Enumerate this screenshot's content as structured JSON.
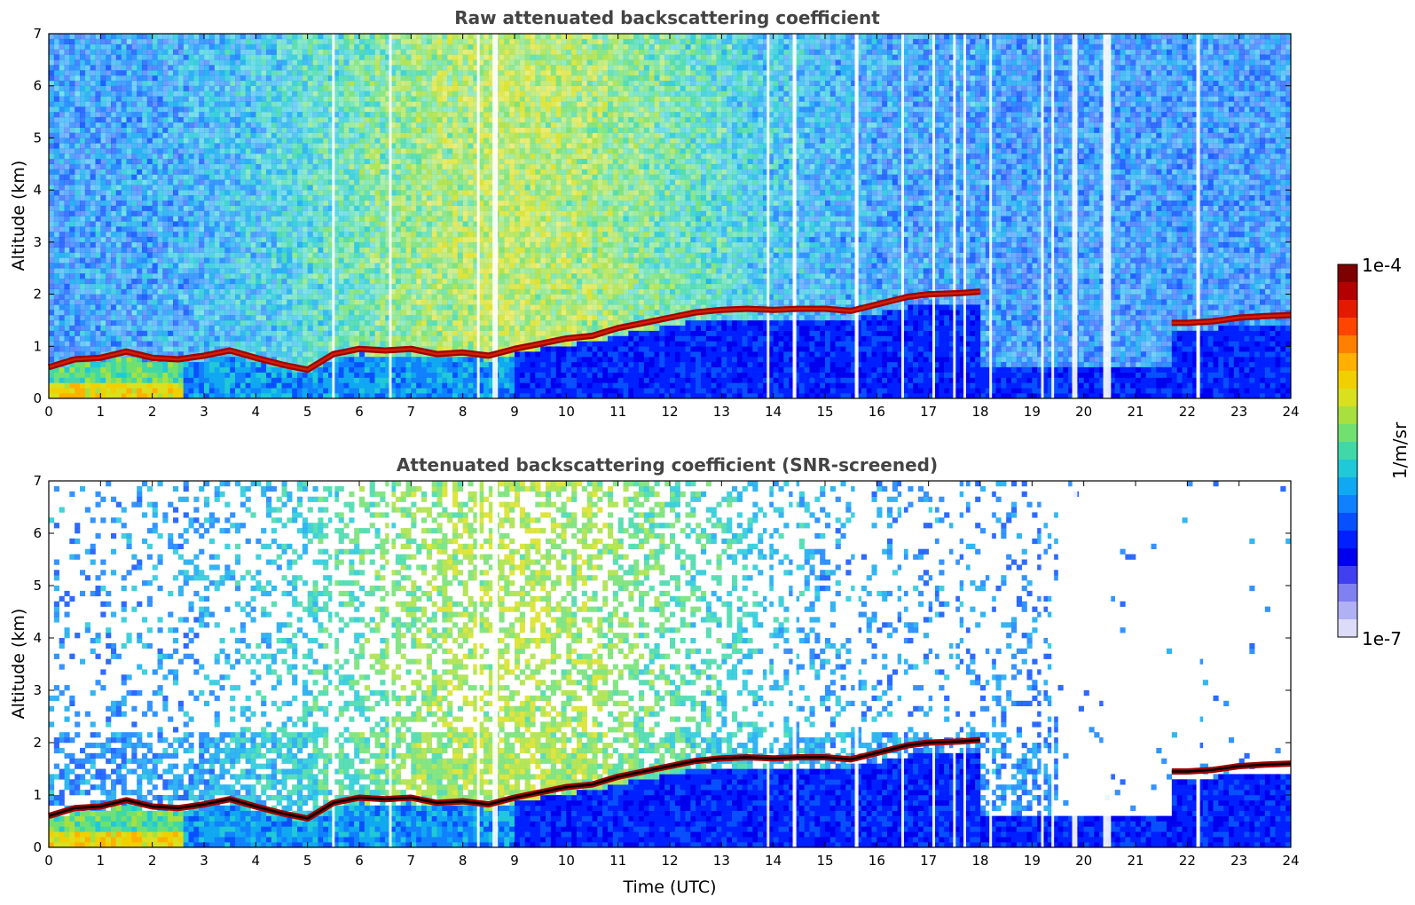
{
  "chart_data": [
    {
      "type": "heatmap",
      "title": "Raw attenuated backscattering coefficient",
      "xlabel": "",
      "ylabel": "Altitude (km)",
      "xlim": [
        0,
        24
      ],
      "ylim": [
        0,
        7
      ],
      "x_ticks": [
        0,
        1,
        2,
        3,
        4,
        5,
        6,
        7,
        8,
        9,
        10,
        11,
        12,
        13,
        14,
        15,
        16,
        17,
        18,
        19,
        20,
        21,
        22,
        23,
        24
      ],
      "y_ticks": [
        0,
        1,
        2,
        3,
        4,
        5,
        6,
        7
      ],
      "layer_height_km": [
        [
          0,
          0.6
        ],
        [
          0.5,
          0.75
        ],
        [
          1,
          0.78
        ],
        [
          1.5,
          0.9
        ],
        [
          2,
          0.78
        ],
        [
          2.5,
          0.75
        ],
        [
          3,
          0.82
        ],
        [
          3.5,
          0.92
        ],
        [
          4,
          0.78
        ],
        [
          4.5,
          0.65
        ],
        [
          5,
          0.55
        ],
        [
          5.5,
          0.85
        ],
        [
          6,
          0.95
        ],
        [
          6.5,
          0.92
        ],
        [
          7,
          0.95
        ],
        [
          7.5,
          0.85
        ],
        [
          8,
          0.88
        ],
        [
          8.5,
          0.82
        ],
        [
          9,
          0.95
        ],
        [
          9.5,
          1.05
        ],
        [
          10,
          1.15
        ],
        [
          10.5,
          1.2
        ],
        [
          11,
          1.35
        ],
        [
          11.5,
          1.45
        ],
        [
          12,
          1.55
        ],
        [
          12.5,
          1.65
        ],
        [
          13,
          1.7
        ],
        [
          13.5,
          1.72
        ],
        [
          14,
          1.7
        ],
        [
          14.5,
          1.72
        ],
        [
          15,
          1.72
        ],
        [
          15.5,
          1.68
        ],
        [
          16.6,
          1.95
        ],
        [
          17,
          2.0
        ],
        [
          17.6,
          2.02
        ],
        [
          18,
          2.05
        ],
        [
          21.7,
          1.45
        ],
        [
          22,
          1.45
        ],
        [
          22.5,
          1.48
        ],
        [
          23,
          1.55
        ],
        [
          23.5,
          1.58
        ],
        [
          24,
          1.6
        ]
      ],
      "dropout_hours": [
        5.5,
        6.6,
        8.3,
        8.6,
        8.65,
        13.9,
        14.4,
        14.42,
        15.6,
        15.62,
        16.5,
        17.1,
        17.5,
        17.7,
        18.2,
        19.2,
        19.4,
        19.8,
        19.85,
        20.4,
        20.45,
        20.5,
        22.2,
        22.22
      ]
    },
    {
      "type": "heatmap",
      "title": "Attenuated backscattering coefficient (SNR-screened)",
      "xlabel": "Time (UTC)",
      "ylabel": "Altitude (km)",
      "xlim": [
        0,
        24
      ],
      "ylim": [
        0,
        7
      ],
      "x_ticks": [
        0,
        1,
        2,
        3,
        4,
        5,
        6,
        7,
        8,
        9,
        10,
        11,
        12,
        13,
        14,
        15,
        16,
        17,
        18,
        19,
        20,
        21,
        22,
        23,
        24
      ],
      "y_ticks": [
        0,
        1,
        2,
        3,
        4,
        5,
        6,
        7
      ],
      "layer_height_km": [
        [
          0,
          0.6
        ],
        [
          0.5,
          0.75
        ],
        [
          1,
          0.78
        ],
        [
          1.5,
          0.9
        ],
        [
          2,
          0.78
        ],
        [
          2.5,
          0.75
        ],
        [
          3,
          0.82
        ],
        [
          3.5,
          0.92
        ],
        [
          4,
          0.78
        ],
        [
          4.5,
          0.65
        ],
        [
          5,
          0.55
        ],
        [
          5.5,
          0.85
        ],
        [
          6,
          0.95
        ],
        [
          6.5,
          0.92
        ],
        [
          7,
          0.95
        ],
        [
          7.5,
          0.85
        ],
        [
          8,
          0.88
        ],
        [
          8.5,
          0.82
        ],
        [
          9,
          0.95
        ],
        [
          9.5,
          1.05
        ],
        [
          10,
          1.15
        ],
        [
          10.5,
          1.2
        ],
        [
          11,
          1.35
        ],
        [
          11.5,
          1.45
        ],
        [
          12,
          1.55
        ],
        [
          12.5,
          1.65
        ],
        [
          13,
          1.7
        ],
        [
          13.5,
          1.72
        ],
        [
          14,
          1.7
        ],
        [
          14.5,
          1.72
        ],
        [
          15,
          1.72
        ],
        [
          15.5,
          1.68
        ],
        [
          16.6,
          1.95
        ],
        [
          17,
          2.0
        ],
        [
          17.6,
          2.02
        ],
        [
          18,
          2.05
        ],
        [
          21.7,
          1.45
        ],
        [
          22,
          1.45
        ],
        [
          22.5,
          1.48
        ],
        [
          23,
          1.55
        ],
        [
          23.5,
          1.58
        ],
        [
          24,
          1.6
        ]
      ],
      "dropout_hours": [
        5.5,
        6.6,
        8.3,
        8.6,
        8.65,
        13.9,
        14.4,
        14.42,
        15.6,
        15.62,
        16.5,
        17.1,
        17.5,
        17.7,
        18.2,
        19.2,
        19.4,
        19.8,
        19.85,
        20.4,
        20.45,
        20.5,
        22.2,
        22.22
      ]
    }
  ],
  "colorbar": {
    "max_label": "1e-4",
    "min_label": "1e-7",
    "unit_label": "1/m/sr",
    "colors": [
      "#7f0000",
      "#b30000",
      "#e31a00",
      "#ff4500",
      "#ff7f00",
      "#ffb000",
      "#f0d000",
      "#d8e020",
      "#a8e040",
      "#70e070",
      "#40d8a8",
      "#20c8d8",
      "#10a8f0",
      "#1080ff",
      "#0850ff",
      "#0020ff",
      "#0000ee",
      "#4040f0",
      "#8080f0",
      "#b0b0f4",
      "#dcdcf8"
    ]
  }
}
